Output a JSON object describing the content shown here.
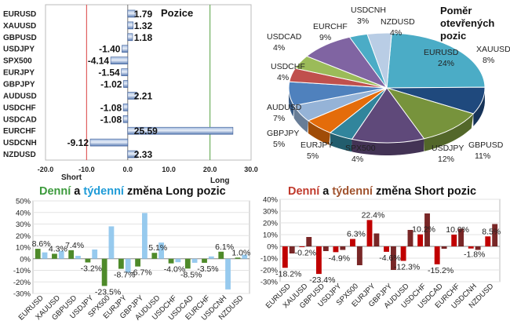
{
  "positions": {
    "chart_data": {
      "type": "bar",
      "title": "Pozice",
      "categories": [
        "EURUSD",
        "XAUUSD",
        "GBPUSD",
        "USDJPY",
        "SPX500",
        "EURJPY",
        "GBPJPY",
        "AUDUSD",
        "USDCHF",
        "USDCAD",
        "EURCHF",
        "USDCNH",
        "NZDUSD"
      ],
      "values": [
        1.79,
        1.32,
        1.18,
        -1.4,
        -4.14,
        -1.54,
        -1.02,
        2.21,
        -1.08,
        -1.08,
        25.59,
        -9.12,
        2.33
      ],
      "value_labels": [
        "1.79",
        "1.32",
        "1.18",
        "-1.40",
        "-4.14",
        "-1.54",
        "-1.02",
        "2.21",
        "-1.08",
        "-1.08",
        "25.59",
        "-9.12",
        "2.33"
      ],
      "xlim": [
        -20,
        30
      ],
      "x_ticks": [
        "-20.0",
        "-10.0",
        "0.0",
        "10.0",
        "20.0",
        "30.0"
      ],
      "short_label": "Short",
      "long_label": "Long",
      "colors": {
        "positive": "#1f3f7a",
        "negative": "#1f3f7a",
        "short_line": "#e06060",
        "long_line": "#70b060"
      }
    }
  },
  "pie": {
    "chart_data": {
      "type": "pie",
      "title": [
        "Poměr",
        "otevřených",
        "pozic"
      ],
      "slices": [
        {
          "label": "EURUSD",
          "value": 24,
          "pct": "24%",
          "color": "#4bacc6"
        },
        {
          "label": "XAUUSD",
          "value": 8,
          "pct": "8%",
          "color": "#1f497d"
        },
        {
          "label": "GBPUSD",
          "value": 11,
          "pct": "11%",
          "color": "#77933c"
        },
        {
          "label": "USDJPY",
          "value": 12,
          "pct": "12%",
          "color": "#5f497a"
        },
        {
          "label": "SPX500",
          "value": 4,
          "pct": "4%",
          "color": "#31859c"
        },
        {
          "label": "EURJPY",
          "value": 5,
          "pct": "5%",
          "color": "#e46c0a"
        },
        {
          "label": "GBPJPY",
          "value": 5,
          "pct": "5%",
          "color": "#95b3d7"
        },
        {
          "label": "AUDUSD",
          "value": 7,
          "pct": "7%",
          "color": "#4f81bd"
        },
        {
          "label": "USDCHF",
          "value": 4,
          "pct": "4%",
          "color": "#c0504d"
        },
        {
          "label": "USDCAD",
          "value": 4,
          "pct": "4%",
          "color": "#9bbb59"
        },
        {
          "label": "EURCHF",
          "value": 9,
          "pct": "9%",
          "color": "#8064a2"
        },
        {
          "label": "USDCNH",
          "value": 3,
          "pct": "3%",
          "color": "#4bacc6"
        },
        {
          "label": "NZDUSD",
          "value": 4,
          "pct": "4%",
          "color": "#b9cde5"
        }
      ]
    }
  },
  "long_changes": {
    "title_parts": [
      "Denní",
      " a ",
      "týdenní",
      " změna Long pozic"
    ],
    "title_colors": [
      "#3c9a3c",
      "#111111",
      "#1e9bd7",
      "#111111"
    ],
    "chart_data": {
      "type": "bar",
      "categories": [
        "EURUSD",
        "XAUUSD",
        "GBPUSD",
        "USDJPY",
        "SPX500",
        "EURJPY",
        "GBPJPY",
        "AUDUSD",
        "USDCHF",
        "USDCAD",
        "EURCHF",
        "USDCNH",
        "NZDUSD"
      ],
      "series": [
        {
          "values": [
            8.6,
            4.3,
            7.4,
            -3.2,
            -23.5,
            -8.7,
            -6.7,
            5.1,
            -4.0,
            -8.5,
            -3.5,
            6.1,
            1.0
          ],
          "color": "#4e8a2a"
        },
        {
          "values": [
            5.5,
            7.0,
            2.5,
            8.0,
            28.0,
            -12.0,
            39.5,
            14.0,
            -3.0,
            -3.5,
            2.0,
            -26.5,
            3.5
          ],
          "color": "#8cc4ec"
        }
      ],
      "value_labels": [
        "8.6%",
        "4.3%",
        "7.4%",
        "-3.2%",
        "-23.5%",
        "-8.7%",
        "-6.7%",
        "5.1%",
        "-4.0%",
        "-8.5%",
        "-3.5%",
        "6.1%",
        "1.0%"
      ],
      "ylim": [
        -30,
        50
      ],
      "y_ticks": [
        "50%",
        "40%",
        "30%",
        "20%",
        "10%",
        "0%",
        "-10%",
        "-20%",
        "-30%"
      ]
    }
  },
  "short_changes": {
    "title_parts": [
      "Denní",
      " a ",
      "týdenní",
      " změna Short pozic"
    ],
    "title_colors": [
      "#c0392b",
      "#111111",
      "#a0522d",
      "#111111"
    ],
    "chart_data": {
      "type": "bar",
      "categories": [
        "EURUSD",
        "XAUUSD",
        "GBPUSD",
        "USDJPY",
        "SPX500",
        "EURJPY",
        "GBPJPY",
        "AUDUSD",
        "USDCHF",
        "USDCAD",
        "EURCHF",
        "USDCNH",
        "NZDUSD"
      ],
      "series": [
        {
          "values": [
            -18.2,
            -0.2,
            -23.4,
            -4.9,
            6.3,
            22.4,
            -4.6,
            -12.3,
            10.2,
            -15.2,
            10.0,
            -1.8,
            8.5
          ],
          "color": "#c00000"
        },
        {
          "values": [
            -6.0,
            8.0,
            -4.0,
            -3.0,
            -16.0,
            11.0,
            -20.0,
            14.0,
            28.0,
            -2.0,
            15.0,
            -3.0,
            19.0
          ],
          "color": "#6a1010"
        }
      ],
      "value_labels": [
        "-18.2%",
        "-0.2%",
        "-23.4%",
        "-4.9%",
        "6.3%",
        "22.4%",
        "-4.6%",
        "-12.3%",
        "10.2%",
        "-15.2%",
        "10.0%",
        "-1.8%",
        "8.5%"
      ],
      "ylim": [
        -30,
        40
      ],
      "y_ticks": [
        "40%",
        "30%",
        "20%",
        "10%",
        "0%",
        "-10%",
        "-20%",
        "-30%"
      ]
    }
  }
}
